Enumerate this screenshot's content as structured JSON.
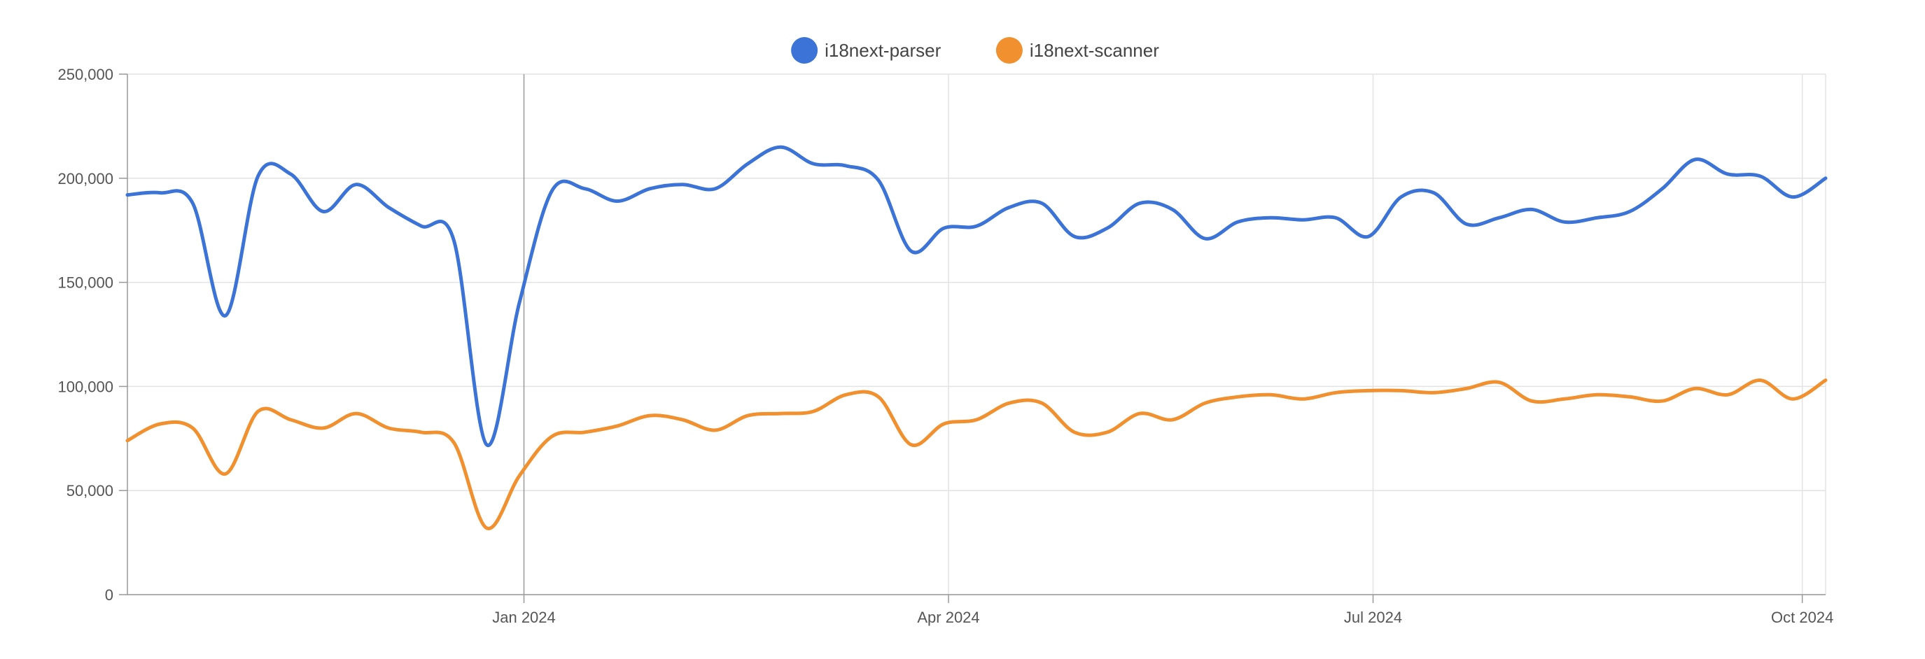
{
  "chart_data": {
    "type": "line",
    "title": "",
    "xlabel": "",
    "ylabel": "",
    "legend_position": "top-center",
    "grid": true,
    "x_range": [
      "2023-10-08",
      "2024-10-06"
    ],
    "ylim": [
      0,
      250000
    ],
    "y_ticks": [
      0,
      50000,
      100000,
      150000,
      200000,
      250000
    ],
    "y_tick_labels": [
      "0",
      "50,000",
      "100,000",
      "150,000",
      "200,000",
      "250,000"
    ],
    "x_ticks": [
      "2024-01-01",
      "2024-04-01",
      "2024-07-01",
      "2024-10-01"
    ],
    "x_tick_labels": [
      "Jan 2024",
      "Apr 2024",
      "Jul 2024",
      "Oct 2024"
    ],
    "x": [
      "2023-10-08",
      "2023-10-15",
      "2023-10-22",
      "2023-10-29",
      "2023-11-05",
      "2023-11-12",
      "2023-11-19",
      "2023-11-26",
      "2023-12-03",
      "2023-12-10",
      "2023-12-17",
      "2023-12-24",
      "2023-12-31",
      "2024-01-07",
      "2024-01-14",
      "2024-01-21",
      "2024-01-28",
      "2024-02-04",
      "2024-02-11",
      "2024-02-18",
      "2024-02-25",
      "2024-03-03",
      "2024-03-10",
      "2024-03-17",
      "2024-03-24",
      "2024-03-31",
      "2024-04-07",
      "2024-04-14",
      "2024-04-21",
      "2024-04-28",
      "2024-05-05",
      "2024-05-12",
      "2024-05-19",
      "2024-05-26",
      "2024-06-02",
      "2024-06-09",
      "2024-06-16",
      "2024-06-23",
      "2024-06-30",
      "2024-07-07",
      "2024-07-14",
      "2024-07-21",
      "2024-07-28",
      "2024-08-04",
      "2024-08-11",
      "2024-08-18",
      "2024-08-25",
      "2024-09-01",
      "2024-09-08",
      "2024-09-15",
      "2024-09-22",
      "2024-09-29",
      "2024-10-06"
    ],
    "series": [
      {
        "name": "i18next-parser",
        "color": "#3b73d6",
        "values": [
          192000,
          193000,
          188000,
          134000,
          201000,
          202000,
          184000,
          197000,
          186000,
          177000,
          170000,
          72000,
          140000,
          194000,
          195000,
          189000,
          195000,
          197000,
          195000,
          207000,
          215000,
          207000,
          206000,
          199000,
          165000,
          176000,
          177000,
          186000,
          188000,
          172000,
          176000,
          188000,
          185000,
          171000,
          179000,
          181000,
          180000,
          181000,
          172000,
          191000,
          193000,
          178000,
          181000,
          185000,
          179000,
          181000,
          184000,
          195000,
          209000,
          202000,
          201000,
          191000,
          200000
        ]
      },
      {
        "name": "i18next-scanner",
        "color": "#f0902f",
        "values": [
          74000,
          82000,
          80000,
          58000,
          88000,
          84000,
          80000,
          87000,
          80000,
          78000,
          73000,
          32000,
          57000,
          76000,
          78000,
          81000,
          86000,
          84000,
          79000,
          86000,
          87000,
          88000,
          96000,
          95000,
          72000,
          82000,
          84000,
          92000,
          92000,
          78000,
          78000,
          87000,
          84000,
          92000,
          95000,
          96000,
          94000,
          97000,
          98000,
          98000,
          97000,
          99000,
          102000,
          93000,
          94000,
          96000,
          95000,
          93000,
          99000,
          96000,
          103000,
          94000,
          103000
        ]
      }
    ]
  }
}
